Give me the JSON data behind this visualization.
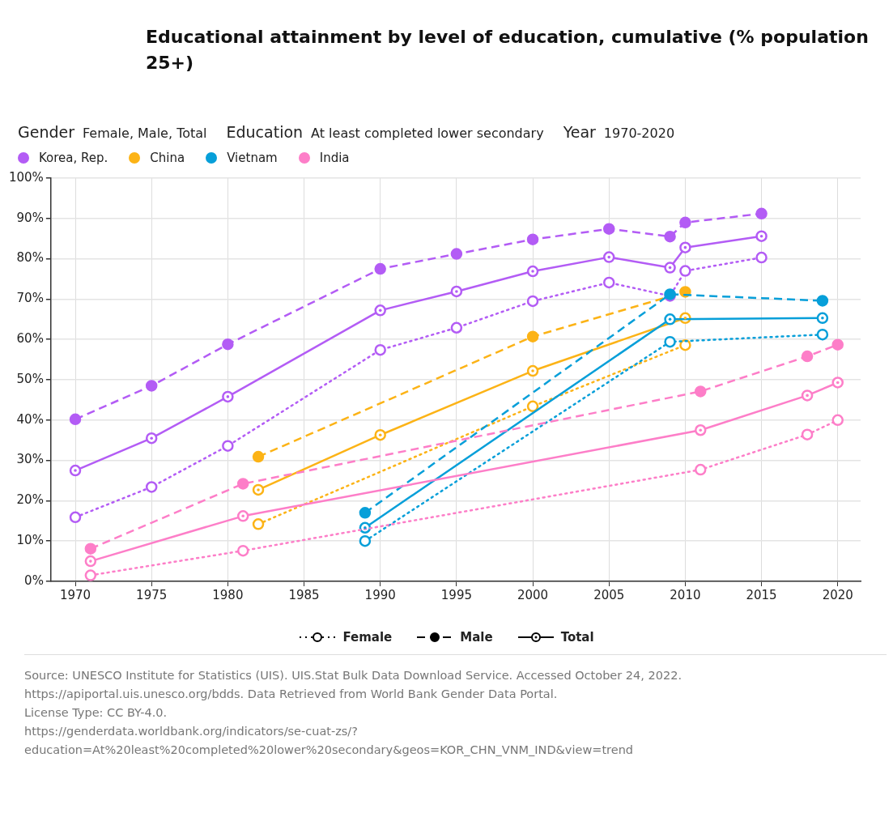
{
  "chart_data": {
    "type": "line",
    "title": "Educational attainment by level of education, cumulative (% population 25+)",
    "annotations": [
      "Gender",
      "Female, Male, Total",
      "Education",
      "At least completed lower secondary",
      "Year",
      "1970-2020",
      "Female",
      "Male",
      "Total",
      "Source: UNESCO Institute for Statistics (UIS). UIS.Stat Bulk Data Download Service. Accessed October 24, 2022.\nhttps://apiportal.uis.unesco.org/bdds. Data Retrieved from World Bank Gender Data Portal.\nLicense Type: CC BY-4.0.\nhttps://genderdata.worldbank.org/indicators/se-cuat-zs/?\neducation=At%20least%20completed%20lower%20secondary&geos=KOR_CHN_VNM_IND&view=trend"
    ],
    "xlim": [
      1968.4,
      2021.5
    ],
    "xticks": [
      1970,
      1975,
      1980,
      1985,
      1990,
      1995,
      2000,
      2005,
      2010,
      2015,
      2020
    ],
    "ylim": [
      0,
      100
    ],
    "yticks": [
      {
        "value": 0,
        "label": "0%"
      },
      {
        "value": 10,
        "label": "10%"
      },
      {
        "value": 20,
        "label": "20%"
      },
      {
        "value": 30,
        "label": "30%"
      },
      {
        "value": 40,
        "label": "40%"
      },
      {
        "value": 50,
        "label": "50%"
      },
      {
        "value": 60,
        "label": "60%"
      },
      {
        "value": 70,
        "label": "70%"
      },
      {
        "value": 80,
        "label": "80%"
      },
      {
        "value": 90,
        "label": "90%"
      },
      {
        "value": 100,
        "label": "100%"
      }
    ],
    "grid": true,
    "legend": "top left",
    "marker": "circle",
    "series": [
      {
        "name": "Korea, Rep.",
        "color": "#b35cf5",
        "line_style": "dashed",
        "x": [
          1970,
          1975,
          1980,
          1990,
          1995,
          2000,
          2005,
          2009,
          2010,
          2015
        ],
        "values": [
          40.2,
          48.5,
          58.8,
          77.5,
          81.2,
          84.8,
          87.4,
          85.5,
          89.0,
          91.2
        ]
      },
      {
        "color": "#b35cf5",
        "line_style": "dotted",
        "x": [
          1970,
          1975,
          1980,
          1990,
          1995,
          2000,
          2005,
          2009,
          2010,
          2015
        ],
        "values": [
          15.9,
          23.4,
          33.6,
          57.4,
          62.9,
          69.5,
          74.1,
          70.8,
          77.0,
          80.3
        ]
      },
      {
        "color": "#b35cf5",
        "line_style": "solid",
        "x": [
          1970,
          1975,
          1980,
          1990,
          1995,
          2000,
          2005,
          2009,
          2010,
          2015
        ],
        "values": [
          27.5,
          35.5,
          45.8,
          67.2,
          71.9,
          76.9,
          80.4,
          77.8,
          82.8,
          85.6
        ]
      },
      {
        "name": "China",
        "color": "#fcb316",
        "line_style": "dashed",
        "x": [
          1982,
          2000,
          2010
        ],
        "values": [
          30.9,
          60.7,
          71.8
        ]
      },
      {
        "color": "#fcb316",
        "line_style": "dotted",
        "x": [
          1982,
          2000,
          2010
        ],
        "values": [
          14.2,
          43.4,
          58.6
        ]
      },
      {
        "color": "#fcb316",
        "line_style": "solid",
        "x": [
          1982,
          1990,
          2000,
          2010
        ],
        "values": [
          22.7,
          36.3,
          52.2,
          65.3
        ]
      },
      {
        "name": "Vietnam",
        "color": "#079fd9",
        "line_style": "dashed",
        "x": [
          1989,
          2009,
          2019
        ],
        "values": [
          17.0,
          71.2,
          69.6
        ]
      },
      {
        "color": "#079fd9",
        "line_style": "dotted",
        "x": [
          1989,
          2009,
          2019
        ],
        "values": [
          10.0,
          59.4,
          61.2
        ]
      },
      {
        "color": "#079fd9",
        "line_style": "solid",
        "x": [
          1989,
          2009,
          2019
        ],
        "values": [
          13.3,
          65.0,
          65.3
        ]
      },
      {
        "name": "India",
        "color": "#fd7ec8",
        "line_style": "dashed",
        "x": [
          1971,
          1981,
          2011,
          2018,
          2020
        ],
        "values": [
          8.1,
          24.2,
          47.1,
          55.8,
          58.7
        ]
      },
      {
        "color": "#fd7ec8",
        "line_style": "dotted",
        "x": [
          1971,
          1981,
          2011,
          2018,
          2020
        ],
        "values": [
          1.5,
          7.6,
          27.7,
          36.4,
          40.0
        ]
      },
      {
        "color": "#fd7ec8",
        "line_style": "solid",
        "x": [
          1971,
          1981,
          2011,
          2018,
          2020
        ],
        "values": [
          5.0,
          16.2,
          37.5,
          46.1,
          49.3
        ]
      }
    ]
  }
}
